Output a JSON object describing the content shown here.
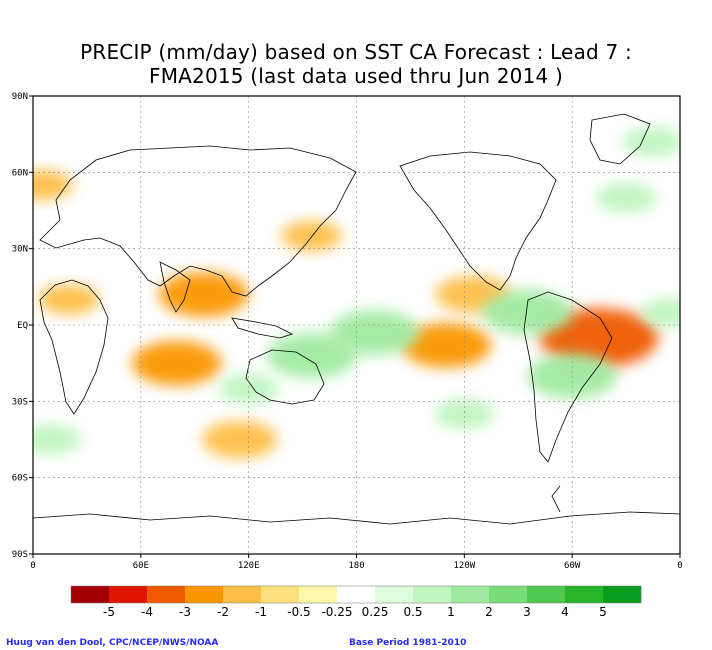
{
  "chart_data": {
    "type": "heatmap",
    "title_line1": "PRECIP (mm/day) based on SST CA Forecast : Lead 7 :",
    "title_line2": "FMA2015 (last data used thru Jun 2014 )",
    "lat_ticks": [
      "90N",
      "60N",
      "30N",
      "EQ",
      "30S",
      "60S",
      "90S"
    ],
    "lat_values": [
      90,
      60,
      30,
      0,
      -30,
      -60,
      -90
    ],
    "lon_ticks": [
      "0",
      "60E",
      "120E",
      "180",
      "120W",
      "60W",
      "0"
    ],
    "lon_values": [
      0,
      60,
      120,
      180,
      240,
      300,
      360
    ],
    "xlim": [
      0,
      360
    ],
    "ylim": [
      -90,
      90
    ],
    "grid": true,
    "colorbar": {
      "labels": [
        "-5",
        "-4",
        "-3",
        "-2",
        "-1",
        "-0.5",
        "-0.25",
        "0.25",
        "0.5",
        "1",
        "2",
        "3",
        "4",
        "5"
      ],
      "colors": [
        "#a00000",
        "#e01400",
        "#f05a00",
        "#fa9600",
        "#fcbe46",
        "#fde07c",
        "#fef6a8",
        "#ffffff",
        "#dcfcdc",
        "#c0f5c0",
        "#a0eaa0",
        "#78dc78",
        "#50c850",
        "#28b428",
        "#0a9c1e"
      ]
    },
    "anomalies": [
      {
        "lon": 95,
        "lat": 12,
        "value": -2
      },
      {
        "lon": 80,
        "lat": -15,
        "value": -2
      },
      {
        "lon": 230,
        "lat": -8,
        "value": -2
      },
      {
        "lon": 245,
        "lat": 12,
        "value": -1.5
      },
      {
        "lon": 315,
        "lat": -5,
        "value": -3
      },
      {
        "lon": 115,
        "lat": -45,
        "value": -1.5
      },
      {
        "lon": 20,
        "lat": 10,
        "value": -1
      },
      {
        "lon": 5,
        "lat": 55,
        "value": -1
      },
      {
        "lon": 155,
        "lat": 35,
        "value": -1
      },
      {
        "lon": 190,
        "lat": -3,
        "value": 2
      },
      {
        "lon": 155,
        "lat": -12,
        "value": 2
      },
      {
        "lon": 275,
        "lat": 5,
        "value": 2
      },
      {
        "lon": 300,
        "lat": -20,
        "value": 2
      },
      {
        "lon": 355,
        "lat": 5,
        "value": 1
      },
      {
        "lon": 10,
        "lat": -45,
        "value": 1
      },
      {
        "lon": 240,
        "lat": -35,
        "value": 1
      },
      {
        "lon": 330,
        "lat": 50,
        "value": 1
      },
      {
        "lon": 345,
        "lat": 72,
        "value": 1
      },
      {
        "lon": 120,
        "lat": -25,
        "value": 1
      }
    ]
  },
  "footer": {
    "credit": "Huug van den Dool, CPC/NCEP/NWS/NOAA",
    "base_period": "Base Period 1981-2010"
  }
}
